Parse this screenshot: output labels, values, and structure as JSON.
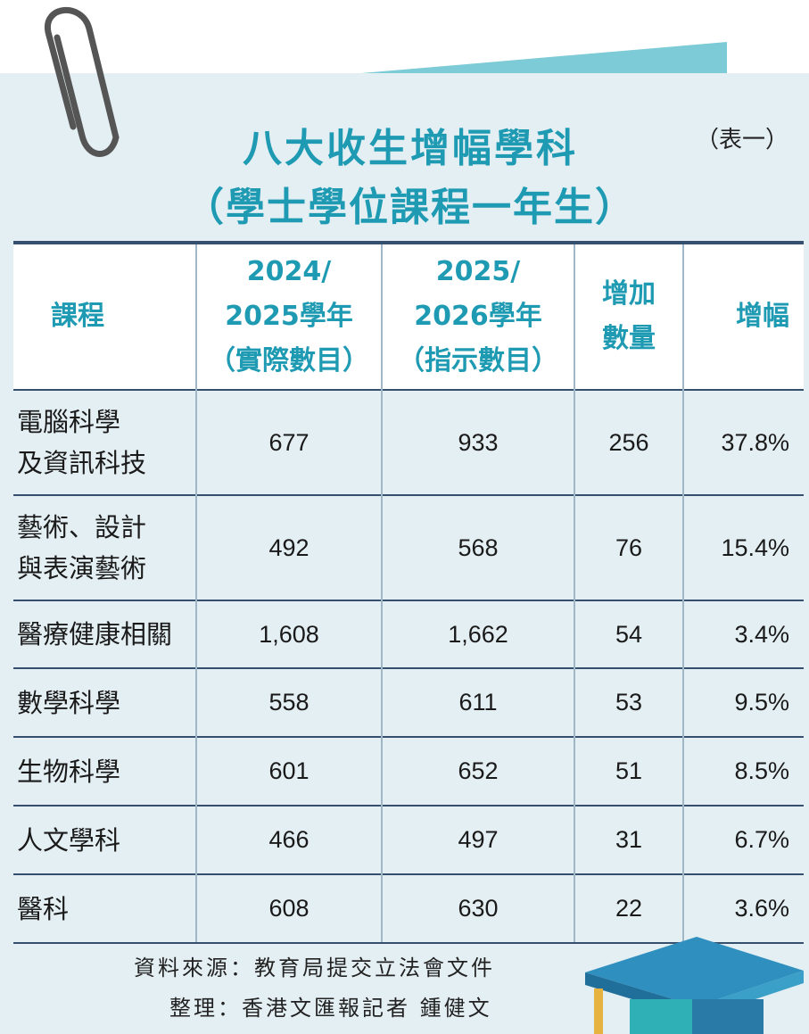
{
  "title_line1": "八大收生增幅學科",
  "title_line2": "（學士學位課程一年生）",
  "tag": "（表一）",
  "columns": {
    "course": "課程",
    "y2024_line1": "2024/",
    "y2024_line2": "2025學年",
    "y2024_line3": "（實際數目）",
    "y2025_line1": "2025/",
    "y2025_line2": "2026學年",
    "y2025_line3": "（指示數目）",
    "inc_line1": "增加",
    "inc_line2": "數量",
    "pct": "增幅"
  },
  "rows": [
    {
      "name_line1": "電腦科學",
      "name_line2": "及資訊科技",
      "actual": "677",
      "indicative": "933",
      "increase": "256",
      "pct": "37.8%"
    },
    {
      "name_line1": "藝術、設計",
      "name_line2": "與表演藝術",
      "actual": "492",
      "indicative": "568",
      "increase": "76",
      "pct": "15.4%"
    },
    {
      "name_line1": "醫療健康相關",
      "name_line2": "",
      "actual": "1,608",
      "indicative": "1,662",
      "increase": "54",
      "pct": "3.4%"
    },
    {
      "name_line1": "數學科學",
      "name_line2": "",
      "actual": "558",
      "indicative": "611",
      "increase": "53",
      "pct": "9.5%"
    },
    {
      "name_line1": "生物科學",
      "name_line2": "",
      "actual": "601",
      "indicative": "652",
      "increase": "51",
      "pct": "8.5%"
    },
    {
      "name_line1": "人文學科",
      "name_line2": "",
      "actual": "466",
      "indicative": "497",
      "increase": "31",
      "pct": "6.7%"
    },
    {
      "name_line1": "醫科",
      "name_line2": "",
      "actual": "608",
      "indicative": "630",
      "increase": "22",
      "pct": "3.6%"
    }
  ],
  "source": "資料來源：教育局提交立法會文件",
  "credit": "整理：香港文匯報記者 鍾健文",
  "colors": {
    "accent": "#1f9ab3",
    "rule": "#35506e",
    "background": "#e4eff3"
  },
  "icons": [
    "paperclip-icon",
    "graduation-cap-icon"
  ]
}
